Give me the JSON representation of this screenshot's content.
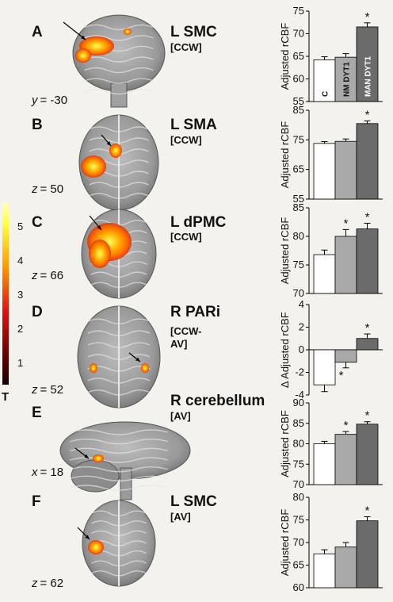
{
  "colorbar": {
    "ticks": [
      "5",
      "4",
      "3",
      "2",
      "1"
    ],
    "label": "T"
  },
  "panels": [
    {
      "letter": "A",
      "region": "L SMC",
      "contrast": "[CCW]",
      "coord_axis": "y",
      "coord_value": "= -30",
      "view": "coronal",
      "blobs": [
        {
          "cx": 122,
          "cy": 58,
          "rx": 22,
          "ry": 12
        },
        {
          "cx": 105,
          "cy": 70,
          "rx": 10,
          "ry": 9
        },
        {
          "cx": 161,
          "cy": 40,
          "rx": 5,
          "ry": 4
        }
      ]
    },
    {
      "letter": "B",
      "region": "L SMA",
      "contrast": "[CCW]",
      "coord_axis": "z",
      "coord_value": "= 50",
      "view": "axial",
      "blobs": [
        {
          "cx": 118,
          "cy": 210,
          "rx": 16,
          "ry": 14
        },
        {
          "cx": 146,
          "cy": 190,
          "rx": 8,
          "ry": 9
        }
      ]
    },
    {
      "letter": "C",
      "region": "L dPMC",
      "contrast": "[CCW]",
      "coord_axis": "z",
      "coord_value": "= 66",
      "view": "axial",
      "blobs": [
        {
          "cx": 138,
          "cy": 305,
          "rx": 28,
          "ry": 24
        },
        {
          "cx": 126,
          "cy": 320,
          "rx": 14,
          "ry": 18
        }
      ]
    },
    {
      "letter": "D",
      "region": "R PARi",
      "contrast": "[CCW-\nAV]",
      "coord_axis": "z",
      "coord_value": "= 52",
      "view": "axial",
      "blobs": [
        {
          "cx": 118,
          "cy": 464,
          "rx": 5,
          "ry": 6
        },
        {
          "cx": 183,
          "cy": 464,
          "rx": 5,
          "ry": 6
        }
      ]
    },
    {
      "letter": "E",
      "region": "R cerebellum",
      "contrast": "[AV]",
      "coord_axis": "x",
      "coord_value": "= 18",
      "view": "sagittal",
      "blobs": [
        {
          "cx": 124,
          "cy": 578,
          "rx": 7,
          "ry": 5
        }
      ]
    },
    {
      "letter": "F",
      "region": "L SMC",
      "contrast": "[AV]",
      "coord_axis": "z",
      "coord_value": "= 62",
      "view": "axial",
      "blobs": [
        {
          "cx": 121,
          "cy": 690,
          "rx": 10,
          "ry": 9
        }
      ]
    }
  ],
  "chart_data": [
    {
      "type": "bar",
      "panel": "A",
      "ylabel": "Adjusted rCBF",
      "ylim": [
        55,
        75
      ],
      "yticks": [
        55,
        60,
        65,
        70,
        75
      ],
      "categories": [
        "C",
        "NM DYT1",
        "MAN DYT1"
      ],
      "values": [
        64.2,
        64.8,
        71.5
      ],
      "errors": [
        0.7,
        0.8,
        0.9
      ],
      "significant": [
        false,
        false,
        true
      ],
      "bar_labels": [
        "C",
        "NM DYT1",
        "MAN DYT1"
      ]
    },
    {
      "type": "bar",
      "panel": "B",
      "ylabel": "Adjusted rCBF",
      "ylim": [
        55,
        85
      ],
      "yticks": [
        55,
        65,
        75,
        85
      ],
      "categories": [
        "C",
        "NM DYT1",
        "MAN DYT1"
      ],
      "values": [
        73.8,
        74.5,
        80.5
      ],
      "errors": [
        0.6,
        0.8,
        0.9
      ],
      "significant": [
        false,
        false,
        true
      ]
    },
    {
      "type": "bar",
      "panel": "C",
      "ylabel": "Adjusted rCBF",
      "ylim": [
        70,
        85
      ],
      "yticks": [
        70,
        75,
        80,
        85
      ],
      "categories": [
        "C",
        "NM DYT1",
        "MAN DYT1"
      ],
      "values": [
        76.8,
        80.0,
        81.3
      ],
      "errors": [
        0.8,
        1.2,
        1.0
      ],
      "significant": [
        false,
        true,
        true
      ]
    },
    {
      "type": "bar",
      "panel": "D",
      "ylabel": "∆ Adjusted rCBF",
      "ylim": [
        -4,
        4
      ],
      "yticks": [
        -4,
        -2,
        0,
        2,
        4
      ],
      "categories": [
        "C",
        "NM DYT1",
        "MAN DYT1"
      ],
      "values": [
        -3.1,
        -1.1,
        1.0
      ],
      "errors": [
        0.6,
        0.5,
        0.4
      ],
      "significant": [
        false,
        true,
        true
      ],
      "star_below": [
        false,
        true,
        false
      ]
    },
    {
      "type": "bar",
      "panel": "E",
      "ylabel": "Adjusted rCBF",
      "ylim": [
        70,
        90
      ],
      "yticks": [
        70,
        75,
        80,
        85,
        90
      ],
      "categories": [
        "C",
        "NM DYT1",
        "MAN DYT1"
      ],
      "values": [
        80.0,
        82.3,
        84.8
      ],
      "errors": [
        0.6,
        0.7,
        0.6
      ],
      "significant": [
        false,
        true,
        true
      ]
    },
    {
      "type": "bar",
      "panel": "F",
      "ylabel": "Adjusted rCBF",
      "ylim": [
        60,
        80
      ],
      "yticks": [
        60,
        65,
        70,
        75,
        80
      ],
      "categories": [
        "C",
        "NM DYT1",
        "MAN DYT1"
      ],
      "values": [
        67.5,
        69.0,
        74.8
      ],
      "errors": [
        0.9,
        1.0,
        0.9
      ],
      "significant": [
        false,
        false,
        true
      ]
    }
  ]
}
